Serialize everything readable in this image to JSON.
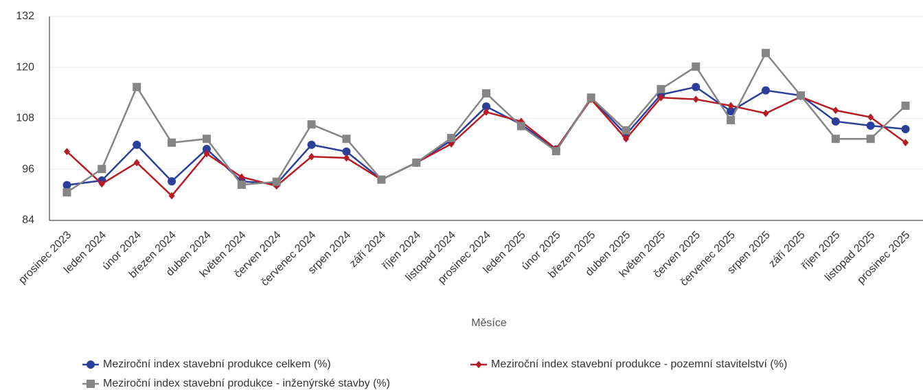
{
  "chart_data": {
    "type": "line",
    "x_label": "Měsíce",
    "categories": [
      "prosinec 2023",
      "leden 2024",
      "únor 2024",
      "březen 2024",
      "duben 2024",
      "květen 2024",
      "červen 2024",
      "červenec 2024",
      "srpen 2024",
      "září 2024",
      "říjen 2024",
      "listopad 2024",
      "prosinec 2024",
      "leden 2025",
      "únor 2025",
      "březen 2025",
      "duben 2025",
      "květen 2025",
      "červen 2025",
      "červenec 2025",
      "srpen 2025",
      "září 2025",
      "říjen 2025",
      "listopad 2025",
      "prosinec 2025"
    ],
    "series": [
      {
        "name": "Meziroční index stavební produkce celkem (%)",
        "color": "#2a3f9a",
        "marker": "circle",
        "values": [
          92.3,
          93.4,
          101.8,
          93.2,
          100.8,
          93.2,
          92.6,
          101.8,
          100.2,
          93.6,
          97.6,
          102.8,
          110.8,
          106.6,
          100.7,
          112.8,
          104.2,
          113.6,
          115.4,
          109.7,
          114.6,
          113.4,
          107.3,
          106.3,
          105.5
        ]
      },
      {
        "name": "Meziroční index stavební produkce - pozemní stavitelství (%)",
        "color": "#b71c25",
        "marker": "diamond",
        "values": [
          100.2,
          92.6,
          97.6,
          89.8,
          99.7,
          94.2,
          92.1,
          99.0,
          98.7,
          93.6,
          97.6,
          102.0,
          109.5,
          107.3,
          100.8,
          112.5,
          103.2,
          112.9,
          112.5,
          111.0,
          109.2,
          113.1,
          109.9,
          108.3,
          102.3
        ]
      },
      {
        "name": "Meziroční index stavební produkce - inženýrské stavby (%)",
        "color": "#858585",
        "marker": "square",
        "values": [
          90.6,
          96.1,
          115.4,
          102.3,
          103.2,
          92.4,
          93.1,
          106.6,
          103.2,
          93.6,
          97.6,
          103.4,
          113.9,
          106.2,
          100.3,
          112.9,
          105.2,
          114.9,
          120.2,
          107.6,
          123.4,
          113.4,
          103.2,
          103.2,
          111.0
        ]
      }
    ],
    "ylim": [
      84,
      132
    ],
    "yticks": [
      84,
      96,
      108,
      120,
      132
    ],
    "grid": true
  }
}
